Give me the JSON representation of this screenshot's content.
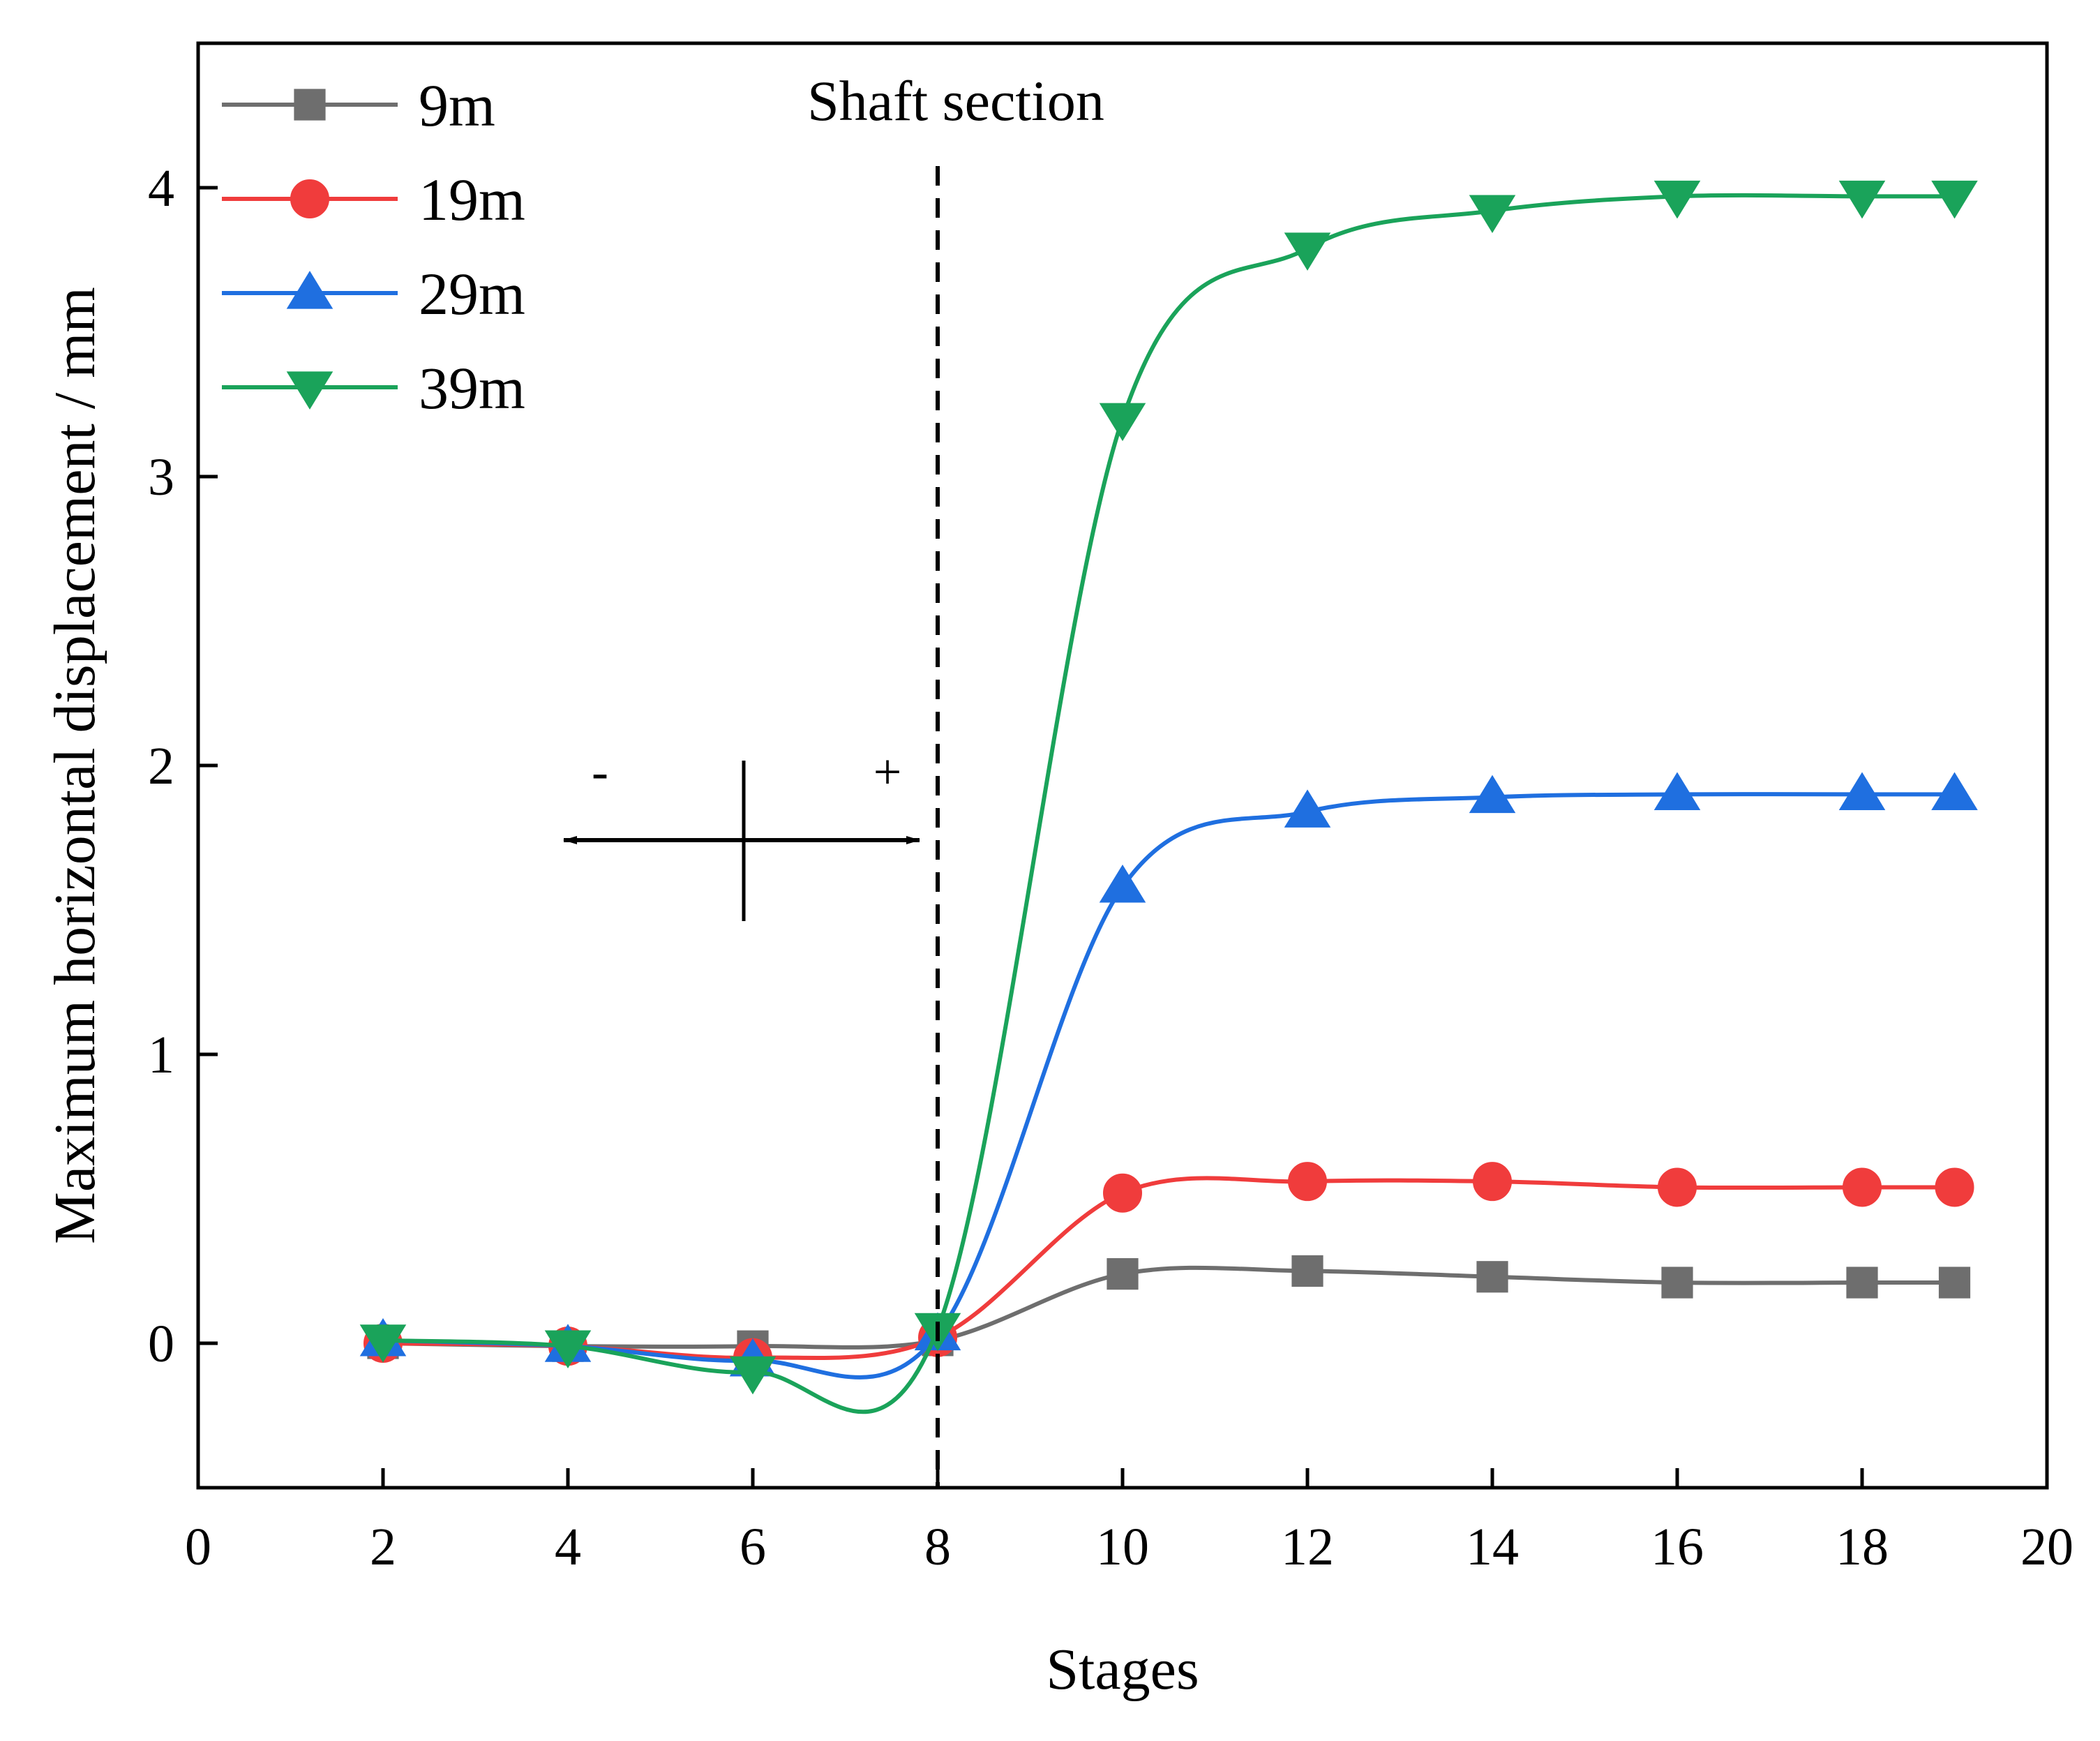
{
  "chart_data": {
    "type": "line",
    "xlabel": "Stages",
    "ylabel": "Maximum horizontal displacement / mm",
    "xlim": [
      0,
      20
    ],
    "ylim": [
      -0.5,
      4.5
    ],
    "xticks": [
      0,
      2,
      4,
      6,
      8,
      10,
      12,
      14,
      16,
      18,
      20
    ],
    "yticks": [
      0,
      1,
      2,
      3,
      4
    ],
    "grid": false,
    "legend_position": "top-left",
    "x": [
      2,
      4,
      6,
      8,
      10,
      12,
      14,
      16,
      18,
      19
    ],
    "series": [
      {
        "name": "9m",
        "color": "#6e6e6e",
        "marker": "square",
        "values": [
          0.0,
          -0.01,
          -0.01,
          0.01,
          0.24,
          0.25,
          0.23,
          0.21,
          0.21,
          0.21
        ]
      },
      {
        "name": "19m",
        "color": "#f03c3c",
        "marker": "circle",
        "values": [
          0.0,
          -0.01,
          -0.05,
          0.02,
          0.52,
          0.56,
          0.56,
          0.54,
          0.54,
          0.54
        ]
      },
      {
        "name": "29m",
        "color": "#1f6fe0",
        "marker": "triangle-up",
        "values": [
          0.01,
          -0.01,
          -0.06,
          0.03,
          1.58,
          1.84,
          1.89,
          1.9,
          1.9,
          1.9
        ]
      },
      {
        "name": "39m",
        "color": "#1aa35a",
        "marker": "triangle-down",
        "values": [
          0.01,
          -0.01,
          -0.1,
          0.05,
          3.2,
          3.79,
          3.92,
          3.97,
          3.97,
          3.97
        ]
      }
    ],
    "annotations": {
      "section_label": "Shaft section",
      "section_x": 8,
      "minus_sign": "-",
      "plus_sign": "+"
    }
  }
}
